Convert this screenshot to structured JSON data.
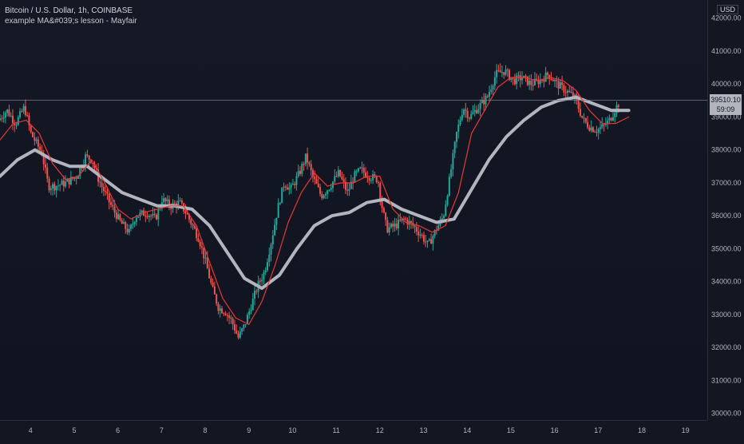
{
  "header": {
    "title": "Bitcoin / U.S. Dollar, 1h, COINBASE",
    "indicator": "example MA&#039;s lesson - Mayfair"
  },
  "price_axis": {
    "currency": "USD",
    "last_price": "39510.10",
    "countdown": "59:09"
  },
  "colors": {
    "background": "#131722",
    "up": "#26a69a",
    "down": "#ef5350",
    "fast_ma": "#e53935",
    "slow_ma": "#b2b5be",
    "price_line": "#787b86"
  },
  "chart_data": {
    "type": "candlestick",
    "y_ticks": [
      30000,
      31000,
      32000,
      33000,
      34000,
      35000,
      36000,
      37000,
      38000,
      39000,
      40000,
      41000,
      42000
    ],
    "y_tick_labels": [
      "30000.00",
      "31000.00",
      "32000.00",
      "33000.00",
      "34000.00",
      "35000.00",
      "36000.00",
      "37000.00",
      "38000.00",
      "39000.00",
      "40000.00",
      "41000.00",
      "42000.00"
    ],
    "ylim": [
      29800,
      42550
    ],
    "x_labels": [
      "4",
      "5",
      "6",
      "7",
      "8",
      "9",
      "10",
      "11",
      "12",
      "13",
      "14",
      "15",
      "16",
      "17",
      "18",
      "19"
    ],
    "x_range": [
      3.3,
      19.5
    ],
    "last_price": 39510.1,
    "price_path": [
      [
        3.3,
        38900
      ],
      [
        3.5,
        39200
      ],
      [
        3.7,
        38800
      ],
      [
        3.9,
        39300
      ],
      [
        4.05,
        38500
      ],
      [
        4.3,
        37900
      ],
      [
        4.45,
        36900
      ],
      [
        4.6,
        36900
      ],
      [
        4.85,
        37000
      ],
      [
        5.1,
        37200
      ],
      [
        5.3,
        37800
      ],
      [
        5.45,
        37700
      ],
      [
        5.6,
        37100
      ],
      [
        5.85,
        36400
      ],
      [
        6.1,
        35800
      ],
      [
        6.3,
        35500
      ],
      [
        6.45,
        36000
      ],
      [
        6.7,
        36100
      ],
      [
        6.9,
        35900
      ],
      [
        7.05,
        36500
      ],
      [
        7.25,
        36300
      ],
      [
        7.45,
        36400
      ],
      [
        7.6,
        36100
      ],
      [
        7.75,
        35700
      ],
      [
        7.9,
        35300
      ],
      [
        8.05,
        34600
      ],
      [
        8.2,
        33800
      ],
      [
        8.35,
        33200
      ],
      [
        8.5,
        33100
      ],
      [
        8.65,
        32800
      ],
      [
        8.8,
        32300
      ],
      [
        8.95,
        32700
      ],
      [
        9.1,
        33300
      ],
      [
        9.25,
        33900
      ],
      [
        9.4,
        34300
      ],
      [
        9.55,
        35200
      ],
      [
        9.7,
        36200
      ],
      [
        9.85,
        37000
      ],
      [
        10.0,
        36800
      ],
      [
        10.2,
        37300
      ],
      [
        10.35,
        37800
      ],
      [
        10.5,
        37200
      ],
      [
        10.7,
        36600
      ],
      [
        10.9,
        36900
      ],
      [
        11.1,
        37300
      ],
      [
        11.3,
        36700
      ],
      [
        11.45,
        37200
      ],
      [
        11.6,
        37400
      ],
      [
        11.8,
        37200
      ],
      [
        12.0,
        37100
      ],
      [
        12.1,
        36200
      ],
      [
        12.2,
        35600
      ],
      [
        12.4,
        35700
      ],
      [
        12.6,
        35900
      ],
      [
        12.8,
        35700
      ],
      [
        13.0,
        35400
      ],
      [
        13.15,
        35100
      ],
      [
        13.3,
        35500
      ],
      [
        13.5,
        36000
      ],
      [
        13.65,
        37200
      ],
      [
        13.8,
        38500
      ],
      [
        13.95,
        39300
      ],
      [
        14.1,
        39000
      ],
      [
        14.3,
        39300
      ],
      [
        14.5,
        39600
      ],
      [
        14.7,
        40300
      ],
      [
        14.9,
        40400
      ],
      [
        15.1,
        40100
      ],
      [
        15.3,
        40200
      ],
      [
        15.5,
        40000
      ],
      [
        15.7,
        40100
      ],
      [
        15.9,
        40300
      ],
      [
        16.1,
        40000
      ],
      [
        16.3,
        39800
      ],
      [
        16.5,
        39600
      ],
      [
        16.7,
        38900
      ],
      [
        16.85,
        38700
      ],
      [
        17.0,
        38600
      ],
      [
        17.15,
        38700
      ],
      [
        17.3,
        38900
      ],
      [
        17.5,
        39400
      ]
    ],
    "fast_ma_path": [
      [
        3.3,
        38300
      ],
      [
        3.6,
        38800
      ],
      [
        3.9,
        38900
      ],
      [
        4.2,
        38500
      ],
      [
        4.5,
        37600
      ],
      [
        4.8,
        37100
      ],
      [
        5.1,
        37200
      ],
      [
        5.4,
        37700
      ],
      [
        5.7,
        37000
      ],
      [
        6.0,
        36200
      ],
      [
        6.3,
        35900
      ],
      [
        6.6,
        36100
      ],
      [
        6.9,
        36200
      ],
      [
        7.2,
        36300
      ],
      [
        7.5,
        36300
      ],
      [
        7.8,
        35700
      ],
      [
        8.1,
        34600
      ],
      [
        8.4,
        33500
      ],
      [
        8.7,
        32900
      ],
      [
        9.0,
        32700
      ],
      [
        9.3,
        33400
      ],
      [
        9.6,
        34500
      ],
      [
        9.9,
        35800
      ],
      [
        10.2,
        36700
      ],
      [
        10.5,
        37300
      ],
      [
        10.8,
        36900
      ],
      [
        11.1,
        37000
      ],
      [
        11.4,
        37000
      ],
      [
        11.7,
        37200
      ],
      [
        12.0,
        37200
      ],
      [
        12.3,
        36200
      ],
      [
        12.6,
        35800
      ],
      [
        12.9,
        35700
      ],
      [
        13.2,
        35500
      ],
      [
        13.5,
        35700
      ],
      [
        13.8,
        36700
      ],
      [
        14.1,
        38500
      ],
      [
        14.4,
        39200
      ],
      [
        14.7,
        39900
      ],
      [
        15.0,
        40200
      ],
      [
        15.3,
        40200
      ],
      [
        15.6,
        40100
      ],
      [
        15.9,
        40200
      ],
      [
        16.2,
        40100
      ],
      [
        16.5,
        39800
      ],
      [
        16.8,
        39200
      ],
      [
        17.1,
        38800
      ],
      [
        17.4,
        38800
      ],
      [
        17.7,
        39000
      ]
    ],
    "slow_ma_path": [
      [
        3.3,
        37200
      ],
      [
        3.7,
        37700
      ],
      [
        4.1,
        38000
      ],
      [
        4.5,
        37700
      ],
      [
        4.9,
        37500
      ],
      [
        5.3,
        37500
      ],
      [
        5.7,
        37100
      ],
      [
        6.1,
        36700
      ],
      [
        6.5,
        36500
      ],
      [
        6.9,
        36300
      ],
      [
        7.3,
        36300
      ],
      [
        7.7,
        36200
      ],
      [
        8.1,
        35700
      ],
      [
        8.5,
        34900
      ],
      [
        8.9,
        34100
      ],
      [
        9.3,
        33800
      ],
      [
        9.7,
        34200
      ],
      [
        10.1,
        35000
      ],
      [
        10.5,
        35700
      ],
      [
        10.9,
        36000
      ],
      [
        11.3,
        36100
      ],
      [
        11.7,
        36400
      ],
      [
        12.1,
        36500
      ],
      [
        12.5,
        36200
      ],
      [
        12.9,
        36000
      ],
      [
        13.3,
        35800
      ],
      [
        13.7,
        35900
      ],
      [
        14.1,
        36800
      ],
      [
        14.5,
        37700
      ],
      [
        14.9,
        38400
      ],
      [
        15.3,
        38900
      ],
      [
        15.7,
        39300
      ],
      [
        16.1,
        39500
      ],
      [
        16.5,
        39600
      ],
      [
        16.9,
        39400
      ],
      [
        17.3,
        39200
      ],
      [
        17.7,
        39200
      ]
    ]
  }
}
